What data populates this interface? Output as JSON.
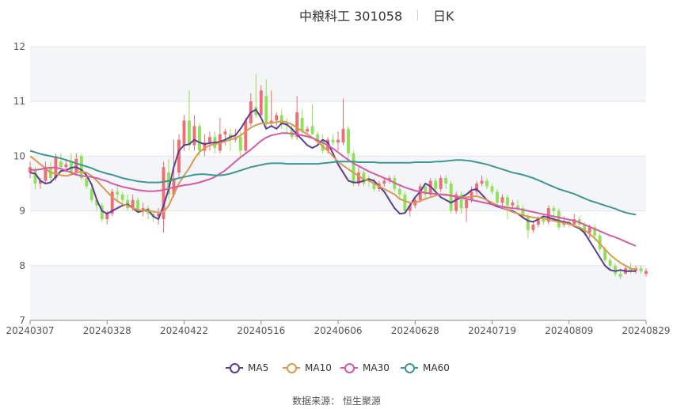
{
  "title": {
    "name": "中粮科工 301058",
    "period": "日K"
  },
  "source": "数据来源： 恒生聚源",
  "colors": {
    "up": "#ee6e73",
    "down": "#91e05a",
    "ma5": "#5b3d96",
    "ma10": "#d99a4e",
    "ma30": "#d65aa6",
    "ma60": "#3e9796"
  },
  "chart_data": {
    "type": "candlestick",
    "ylim": [
      7,
      12
    ],
    "yticks": [
      "7",
      "8",
      "9",
      "10",
      "11",
      "12"
    ],
    "xticks": [
      "20240307",
      "20240328",
      "20240422",
      "20240516",
      "20240606",
      "20240628",
      "20240719",
      "20240809",
      "20240829"
    ],
    "grid": true,
    "legend_position": "bottom-center",
    "legend": [
      "MA5",
      "MA10",
      "MA30",
      "MA60"
    ],
    "candles": [
      {
        "o": 9.7,
        "c": 9.8,
        "h": 9.9,
        "l": 9.6
      },
      {
        "o": 9.75,
        "c": 9.5,
        "h": 9.8,
        "l": 9.4
      },
      {
        "o": 9.5,
        "c": 9.55,
        "h": 9.6,
        "l": 9.4
      },
      {
        "o": 9.55,
        "c": 9.8,
        "h": 9.9,
        "l": 9.5
      },
      {
        "o": 9.8,
        "c": 9.6,
        "h": 9.9,
        "l": 9.5
      },
      {
        "o": 9.6,
        "c": 10.0,
        "h": 10.05,
        "l": 9.55
      },
      {
        "o": 9.9,
        "c": 9.8,
        "h": 10.05,
        "l": 9.7
      },
      {
        "o": 9.8,
        "c": 9.85,
        "h": 9.95,
        "l": 9.7
      },
      {
        "o": 9.9,
        "c": 9.7,
        "h": 10.05,
        "l": 9.65
      },
      {
        "o": 9.7,
        "c": 9.95,
        "h": 10.05,
        "l": 9.65
      },
      {
        "o": 10.0,
        "c": 9.6,
        "h": 10.05,
        "l": 9.55
      },
      {
        "o": 9.6,
        "c": 9.45,
        "h": 9.65,
        "l": 9.4
      },
      {
        "o": 9.4,
        "c": 9.2,
        "h": 9.5,
        "l": 9.15
      },
      {
        "o": 9.2,
        "c": 9.1,
        "h": 9.25,
        "l": 9.0
      },
      {
        "o": 9.1,
        "c": 8.85,
        "h": 9.15,
        "l": 8.8
      },
      {
        "o": 8.85,
        "c": 8.95,
        "h": 9.0,
        "l": 8.75
      },
      {
        "o": 8.95,
        "c": 9.35,
        "h": 9.4,
        "l": 8.9
      },
      {
        "o": 9.35,
        "c": 9.3,
        "h": 9.45,
        "l": 9.2
      },
      {
        "o": 9.3,
        "c": 9.2,
        "h": 9.35,
        "l": 9.1
      },
      {
        "o": 9.2,
        "c": 9.05,
        "h": 9.3,
        "l": 9.0
      },
      {
        "o": 9.05,
        "c": 9.2,
        "h": 9.3,
        "l": 9.0
      },
      {
        "o": 9.2,
        "c": 9.0,
        "h": 9.25,
        "l": 8.95
      },
      {
        "o": 9.0,
        "c": 9.05,
        "h": 9.15,
        "l": 8.9
      },
      {
        "o": 9.05,
        "c": 8.95,
        "h": 9.1,
        "l": 8.85
      },
      {
        "o": 8.95,
        "c": 8.9,
        "h": 9.0,
        "l": 8.8
      },
      {
        "o": 8.9,
        "c": 8.95,
        "h": 9.05,
        "l": 8.75
      },
      {
        "o": 8.85,
        "c": 9.8,
        "h": 9.9,
        "l": 8.6
      },
      {
        "o": 9.7,
        "c": 9.3,
        "h": 9.95,
        "l": 9.2
      },
      {
        "o": 9.3,
        "c": 9.6,
        "h": 10.3,
        "l": 9.25
      },
      {
        "o": 9.7,
        "c": 10.3,
        "h": 10.4,
        "l": 9.6
      },
      {
        "o": 10.2,
        "c": 10.65,
        "h": 10.75,
        "l": 10.1
      },
      {
        "o": 10.65,
        "c": 10.2,
        "h": 11.2,
        "l": 10.1
      },
      {
        "o": 10.2,
        "c": 10.55,
        "h": 10.75,
        "l": 10.1
      },
      {
        "o": 10.55,
        "c": 10.1,
        "h": 10.6,
        "l": 10.0
      },
      {
        "o": 10.1,
        "c": 10.25,
        "h": 10.4,
        "l": 10.0
      },
      {
        "o": 10.25,
        "c": 10.35,
        "h": 10.45,
        "l": 10.1
      },
      {
        "o": 10.35,
        "c": 10.15,
        "h": 10.45,
        "l": 10.05
      },
      {
        "o": 10.1,
        "c": 10.4,
        "h": 10.7,
        "l": 10.05
      },
      {
        "o": 10.4,
        "c": 10.45,
        "h": 10.5,
        "l": 10.2
      },
      {
        "o": 10.4,
        "c": 10.3,
        "h": 10.5,
        "l": 10.1
      },
      {
        "o": 10.3,
        "c": 10.35,
        "h": 10.5,
        "l": 10.25
      },
      {
        "o": 10.35,
        "c": 10.1,
        "h": 10.45,
        "l": 10.0
      },
      {
        "o": 10.1,
        "c": 10.65,
        "h": 10.7,
        "l": 10.05
      },
      {
        "o": 10.6,
        "c": 11.0,
        "h": 11.15,
        "l": 10.55
      },
      {
        "o": 10.9,
        "c": 10.75,
        "h": 11.5,
        "l": 10.7
      },
      {
        "o": 10.75,
        "c": 11.2,
        "h": 11.3,
        "l": 10.7
      },
      {
        "o": 11.1,
        "c": 10.6,
        "h": 11.4,
        "l": 10.5
      },
      {
        "o": 10.6,
        "c": 10.65,
        "h": 11.2,
        "l": 10.55
      },
      {
        "o": 10.65,
        "c": 10.75,
        "h": 10.8,
        "l": 10.55
      },
      {
        "o": 10.75,
        "c": 10.6,
        "h": 10.85,
        "l": 10.5
      },
      {
        "o": 10.6,
        "c": 10.55,
        "h": 10.7,
        "l": 10.4
      },
      {
        "o": 10.5,
        "c": 10.35,
        "h": 10.6,
        "l": 10.3
      },
      {
        "o": 10.35,
        "c": 10.8,
        "h": 11.1,
        "l": 10.3
      },
      {
        "o": 10.7,
        "c": 10.45,
        "h": 10.85,
        "l": 10.4
      },
      {
        "o": 10.45,
        "c": 10.5,
        "h": 10.55,
        "l": 10.4
      },
      {
        "o": 10.55,
        "c": 10.4,
        "h": 10.95,
        "l": 10.4
      },
      {
        "o": 10.4,
        "c": 10.3,
        "h": 10.45,
        "l": 10.2
      },
      {
        "o": 10.3,
        "c": 10.1,
        "h": 10.4,
        "l": 10.05
      },
      {
        "o": 10.1,
        "c": 10.3,
        "h": 10.35,
        "l": 10.05
      },
      {
        "o": 10.3,
        "c": 10.25,
        "h": 10.4,
        "l": 10.2
      },
      {
        "o": 10.25,
        "c": 10.3,
        "h": 10.45,
        "l": 10.1
      },
      {
        "o": 10.25,
        "c": 10.5,
        "h": 11.05,
        "l": 10.2
      },
      {
        "o": 10.5,
        "c": 10.05,
        "h": 10.55,
        "l": 9.95
      },
      {
        "o": 10.05,
        "c": 9.5,
        "h": 10.1,
        "l": 9.45
      },
      {
        "o": 9.5,
        "c": 9.7,
        "h": 9.8,
        "l": 9.45
      },
      {
        "o": 9.7,
        "c": 9.5,
        "h": 9.75,
        "l": 9.45
      },
      {
        "o": 9.6,
        "c": 9.55,
        "h": 9.65,
        "l": 9.45
      },
      {
        "o": 9.55,
        "c": 9.4,
        "h": 9.6,
        "l": 9.35
      },
      {
        "o": 9.4,
        "c": 9.5,
        "h": 9.55,
        "l": 9.35
      },
      {
        "o": 9.5,
        "c": 9.55,
        "h": 9.6,
        "l": 9.45
      },
      {
        "o": 9.55,
        "c": 9.6,
        "h": 9.65,
        "l": 9.5
      },
      {
        "o": 9.6,
        "c": 9.4,
        "h": 9.65,
        "l": 9.35
      },
      {
        "o": 9.4,
        "c": 9.3,
        "h": 9.45,
        "l": 9.2
      },
      {
        "o": 9.3,
        "c": 9.0,
        "h": 9.35,
        "l": 8.95
      },
      {
        "o": 9.0,
        "c": 9.1,
        "h": 9.15,
        "l": 8.9
      },
      {
        "o": 9.1,
        "c": 9.2,
        "h": 9.25,
        "l": 9.05
      },
      {
        "o": 9.2,
        "c": 9.45,
        "h": 9.5,
        "l": 9.15
      },
      {
        "o": 9.45,
        "c": 9.3,
        "h": 9.5,
        "l": 9.2
      },
      {
        "o": 9.3,
        "c": 9.55,
        "h": 9.6,
        "l": 9.25
      },
      {
        "o": 9.55,
        "c": 9.4,
        "h": 9.6,
        "l": 9.35
      },
      {
        "o": 9.4,
        "c": 9.6,
        "h": 9.65,
        "l": 9.35
      },
      {
        "o": 9.6,
        "c": 9.5,
        "h": 9.65,
        "l": 9.4
      },
      {
        "o": 9.5,
        "c": 9.0,
        "h": 9.55,
        "l": 8.95
      },
      {
        "o": 9.0,
        "c": 9.3,
        "h": 9.35,
        "l": 8.95
      },
      {
        "o": 9.3,
        "c": 9.05,
        "h": 9.35,
        "l": 8.95
      },
      {
        "o": 9.05,
        "c": 9.2,
        "h": 9.25,
        "l": 8.8
      },
      {
        "o": 9.2,
        "c": 9.35,
        "h": 9.45,
        "l": 9.15
      },
      {
        "o": 9.35,
        "c": 9.5,
        "h": 9.55,
        "l": 9.3
      },
      {
        "o": 9.5,
        "c": 9.55,
        "h": 9.65,
        "l": 9.45
      },
      {
        "o": 9.55,
        "c": 9.45,
        "h": 9.6,
        "l": 9.4
      },
      {
        "o": 9.45,
        "c": 9.35,
        "h": 9.5,
        "l": 9.3
      },
      {
        "o": 9.35,
        "c": 9.15,
        "h": 9.4,
        "l": 9.1
      },
      {
        "o": 9.15,
        "c": 9.25,
        "h": 9.3,
        "l": 9.05
      },
      {
        "o": 9.25,
        "c": 9.1,
        "h": 9.3,
        "l": 8.85
      },
      {
        "o": 9.1,
        "c": 9.15,
        "h": 9.2,
        "l": 9.05
      },
      {
        "o": 9.1,
        "c": 9.05,
        "h": 9.2,
        "l": 9.0
      },
      {
        "o": 9.05,
        "c": 8.9,
        "h": 9.1,
        "l": 8.85
      },
      {
        "o": 8.9,
        "c": 8.65,
        "h": 8.95,
        "l": 8.5
      },
      {
        "o": 8.65,
        "c": 8.75,
        "h": 8.8,
        "l": 8.6
      },
      {
        "o": 8.75,
        "c": 8.85,
        "h": 8.9,
        "l": 8.7
      },
      {
        "o": 8.85,
        "c": 8.8,
        "h": 8.95,
        "l": 8.75
      },
      {
        "o": 8.8,
        "c": 9.05,
        "h": 9.1,
        "l": 8.75
      },
      {
        "o": 9.05,
        "c": 9.0,
        "h": 9.1,
        "l": 8.85
      },
      {
        "o": 9.0,
        "c": 8.7,
        "h": 9.05,
        "l": 8.65
      },
      {
        "o": 8.75,
        "c": 8.8,
        "h": 8.9,
        "l": 8.7
      },
      {
        "o": 8.8,
        "c": 8.75,
        "h": 8.85,
        "l": 8.7
      },
      {
        "o": 8.75,
        "c": 8.85,
        "h": 8.95,
        "l": 8.7
      },
      {
        "o": 8.85,
        "c": 8.75,
        "h": 8.9,
        "l": 8.7
      },
      {
        "o": 8.75,
        "c": 8.6,
        "h": 8.8,
        "l": 8.55
      },
      {
        "o": 8.6,
        "c": 8.7,
        "h": 8.75,
        "l": 8.5
      },
      {
        "o": 8.7,
        "c": 8.55,
        "h": 8.75,
        "l": 8.45
      },
      {
        "o": 8.55,
        "c": 8.3,
        "h": 8.6,
        "l": 8.25
      },
      {
        "o": 8.3,
        "c": 8.1,
        "h": 8.35,
        "l": 8.05
      },
      {
        "o": 8.1,
        "c": 8.0,
        "h": 8.15,
        "l": 7.9
      },
      {
        "o": 8.0,
        "c": 7.85,
        "h": 8.05,
        "l": 7.8
      },
      {
        "o": 7.85,
        "c": 7.8,
        "h": 7.95,
        "l": 7.75
      },
      {
        "o": 7.85,
        "c": 7.95,
        "h": 8.0,
        "l": 7.85
      },
      {
        "o": 7.95,
        "c": 7.9,
        "h": 8.05,
        "l": 7.85
      },
      {
        "o": 7.9,
        "c": 7.95,
        "h": 8.0,
        "l": 7.85
      },
      {
        "o": 7.95,
        "c": 7.9,
        "h": 8.0,
        "l": 7.85
      },
      {
        "o": 7.85,
        "c": 7.9,
        "h": 7.95,
        "l": 7.8
      }
    ],
    "series": [
      {
        "name": "MA5",
        "values": [
          9.7,
          9.68,
          9.55,
          9.5,
          9.52,
          9.62,
          9.73,
          9.74,
          9.79,
          9.8,
          9.75,
          9.65,
          9.48,
          9.2,
          9.0,
          8.95,
          9.0,
          9.05,
          9.1,
          9.12,
          9.05,
          8.98,
          9.0,
          9.02,
          8.9,
          8.85,
          9.1,
          9.4,
          9.8,
          10.1,
          10.2,
          10.22,
          10.3,
          10.25,
          10.22,
          10.24,
          10.25,
          10.26,
          10.3,
          10.35,
          10.38,
          10.5,
          10.65,
          10.8,
          10.85,
          10.7,
          10.5,
          10.55,
          10.5,
          10.6,
          10.58,
          10.5,
          10.4,
          10.3,
          10.2,
          10.15,
          10.2,
          10.3,
          10.25,
          10.05,
          9.85,
          9.7,
          9.55,
          9.52,
          9.52,
          9.55,
          9.58,
          9.55,
          9.45,
          9.35,
          9.2,
          9.05,
          8.95,
          8.96,
          9.1,
          9.25,
          9.35,
          9.5,
          9.45,
          9.35,
          9.25,
          9.2,
          9.15,
          9.2,
          9.25,
          9.3,
          9.38,
          9.4,
          9.3,
          9.2,
          9.12,
          9.08,
          9.05,
          9.02,
          9.0,
          8.95,
          8.88,
          8.82,
          8.8,
          8.85,
          8.9,
          8.88,
          8.85,
          8.82,
          8.8,
          8.78,
          8.72,
          8.68,
          8.6,
          8.45,
          8.3,
          8.15,
          8.0,
          7.92,
          7.9,
          7.92,
          7.9,
          7.9,
          7.9
        ]
      },
      {
        "name": "MA10",
        "values": [
          10.0,
          9.93,
          9.85,
          9.78,
          9.7,
          9.68,
          9.65,
          9.64,
          9.66,
          9.7,
          9.72,
          9.7,
          9.64,
          9.55,
          9.45,
          9.35,
          9.25,
          9.18,
          9.12,
          9.1,
          9.05,
          9.02,
          9.0,
          9.0,
          8.99,
          8.97,
          8.98,
          9.1,
          9.3,
          9.5,
          9.65,
          9.78,
          9.95,
          10.08,
          10.15,
          10.2,
          10.22,
          10.24,
          10.27,
          10.3,
          10.33,
          10.38,
          10.45,
          10.52,
          10.57,
          10.6,
          10.6,
          10.61,
          10.62,
          10.64,
          10.62,
          10.58,
          10.52,
          10.46,
          10.4,
          10.34,
          10.26,
          10.18,
          10.1,
          10.0,
          9.9,
          9.83,
          9.76,
          9.7,
          9.64,
          9.58,
          9.55,
          9.5,
          9.45,
          9.4,
          9.35,
          9.3,
          9.22,
          9.18,
          9.15,
          9.15,
          9.18,
          9.22,
          9.25,
          9.28,
          9.3,
          9.3,
          9.28,
          9.26,
          9.25,
          9.25,
          9.26,
          9.27,
          9.24,
          9.2,
          9.15,
          9.1,
          9.06,
          9.02,
          8.98,
          8.95,
          8.92,
          8.9,
          8.88,
          8.87,
          8.86,
          8.84,
          8.82,
          8.8,
          8.78,
          8.76,
          8.73,
          8.7,
          8.65,
          8.58,
          8.5,
          8.4,
          8.3,
          8.2,
          8.12,
          8.05,
          8.0,
          7.95,
          7.93
        ]
      },
      {
        "name": "MA30",
        "values": [
          9.75,
          9.75,
          9.76,
          9.78,
          9.79,
          9.79,
          9.77,
          9.74,
          9.7,
          9.66,
          9.64,
          9.63,
          9.62,
          9.6,
          9.57,
          9.54,
          9.5,
          9.47,
          9.44,
          9.42,
          9.4,
          9.38,
          9.37,
          9.36,
          9.36,
          9.37,
          9.38,
          9.41,
          9.43,
          9.45,
          9.47,
          9.48,
          9.5,
          9.52,
          9.55,
          9.58,
          9.62,
          9.68,
          9.74,
          9.82,
          9.9,
          9.98,
          10.05,
          10.12,
          10.2,
          10.28,
          10.34,
          10.38,
          10.4,
          10.42,
          10.42,
          10.41,
          10.4,
          10.38,
          10.36,
          10.33,
          10.29,
          10.25,
          10.2,
          10.14,
          10.07,
          10.0,
          9.93,
          9.87,
          9.82,
          9.77,
          9.72,
          9.68,
          9.64,
          9.6,
          9.56,
          9.51,
          9.47,
          9.43,
          9.4,
          9.37,
          9.35,
          9.33,
          9.32,
          9.31,
          9.3,
          9.29,
          9.28,
          9.26,
          9.24,
          9.22,
          9.2,
          9.18,
          9.16,
          9.14,
          9.12,
          9.1,
          9.08,
          9.06,
          9.05,
          9.04,
          9.02,
          9.0,
          8.98,
          8.96,
          8.94,
          8.92,
          8.9,
          8.88,
          8.86,
          8.84,
          8.82,
          8.79,
          8.75,
          8.71,
          8.67,
          8.63,
          8.59,
          8.55,
          8.52,
          8.48,
          8.44,
          8.4,
          8.36
        ]
      },
      {
        "name": "MA60",
        "values": [
          10.1,
          10.07,
          10.04,
          10.02,
          10.0,
          9.98,
          9.96,
          9.93,
          9.9,
          9.87,
          9.84,
          9.81,
          9.78,
          9.74,
          9.71,
          9.68,
          9.66,
          9.63,
          9.6,
          9.58,
          9.56,
          9.54,
          9.53,
          9.52,
          9.52,
          9.52,
          9.53,
          9.55,
          9.57,
          9.6,
          9.62,
          9.64,
          9.66,
          9.67,
          9.67,
          9.66,
          9.65,
          9.65,
          9.66,
          9.68,
          9.71,
          9.74,
          9.77,
          9.8,
          9.82,
          9.84,
          9.86,
          9.87,
          9.87,
          9.87,
          9.86,
          9.86,
          9.86,
          9.86,
          9.86,
          9.86,
          9.86,
          9.87,
          9.88,
          9.89,
          9.9,
          9.9,
          9.9,
          9.9,
          9.89,
          9.89,
          9.89,
          9.89,
          9.88,
          9.88,
          9.88,
          9.88,
          9.88,
          9.88,
          9.88,
          9.89,
          9.89,
          9.89,
          9.89,
          9.9,
          9.9,
          9.91,
          9.92,
          9.93,
          9.93,
          9.92,
          9.91,
          9.89,
          9.87,
          9.85,
          9.82,
          9.79,
          9.76,
          9.73,
          9.7,
          9.68,
          9.66,
          9.63,
          9.6,
          9.56,
          9.52,
          9.48,
          9.44,
          9.4,
          9.37,
          9.34,
          9.31,
          9.27,
          9.23,
          9.19,
          9.16,
          9.13,
          9.1,
          9.07,
          9.04,
          9.0,
          8.97,
          8.95,
          8.93
        ]
      }
    ]
  }
}
